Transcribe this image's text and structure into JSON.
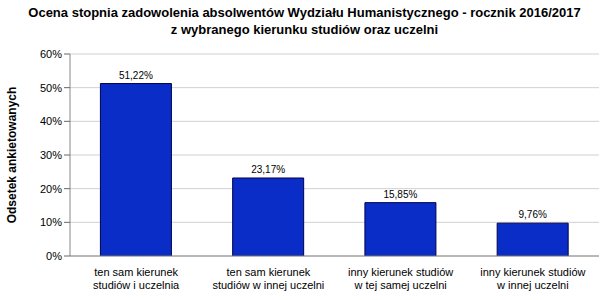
{
  "chart_data": {
    "type": "bar",
    "title": "Ocena stopnia zadowolenia absolwentów Wydziału Humanistycznego - rocznik 2016/2017\nz wybranego kierunku studiów oraz uczelni",
    "y_label": "Odsetek ankietowanych",
    "categories": [
      "ten sam kierunek\nstudiów i uczelnia",
      "ten sam kierunek\nstudiów w innej uczelni",
      "inny kierunek studiów\nw tej samej uczelni",
      "inny kierunek studiów\nw innej uczelni"
    ],
    "values": [
      51.22,
      23.17,
      15.85,
      9.76
    ],
    "value_labels": [
      "51,22%",
      "23,17%",
      "15,85%",
      "9,76%"
    ],
    "color": "#0a2dc8",
    "ylim": [
      0,
      60
    ],
    "yticks": [
      {
        "value": 0,
        "label": "0%"
      },
      {
        "value": 10,
        "label": "10%"
      },
      {
        "value": 20,
        "label": "20%"
      },
      {
        "value": 30,
        "label": "30%"
      },
      {
        "value": 40,
        "label": "40%"
      },
      {
        "value": 50,
        "label": "50%"
      },
      {
        "value": 60,
        "label": "60%"
      }
    ],
    "grid": true,
    "data_labels": true
  }
}
